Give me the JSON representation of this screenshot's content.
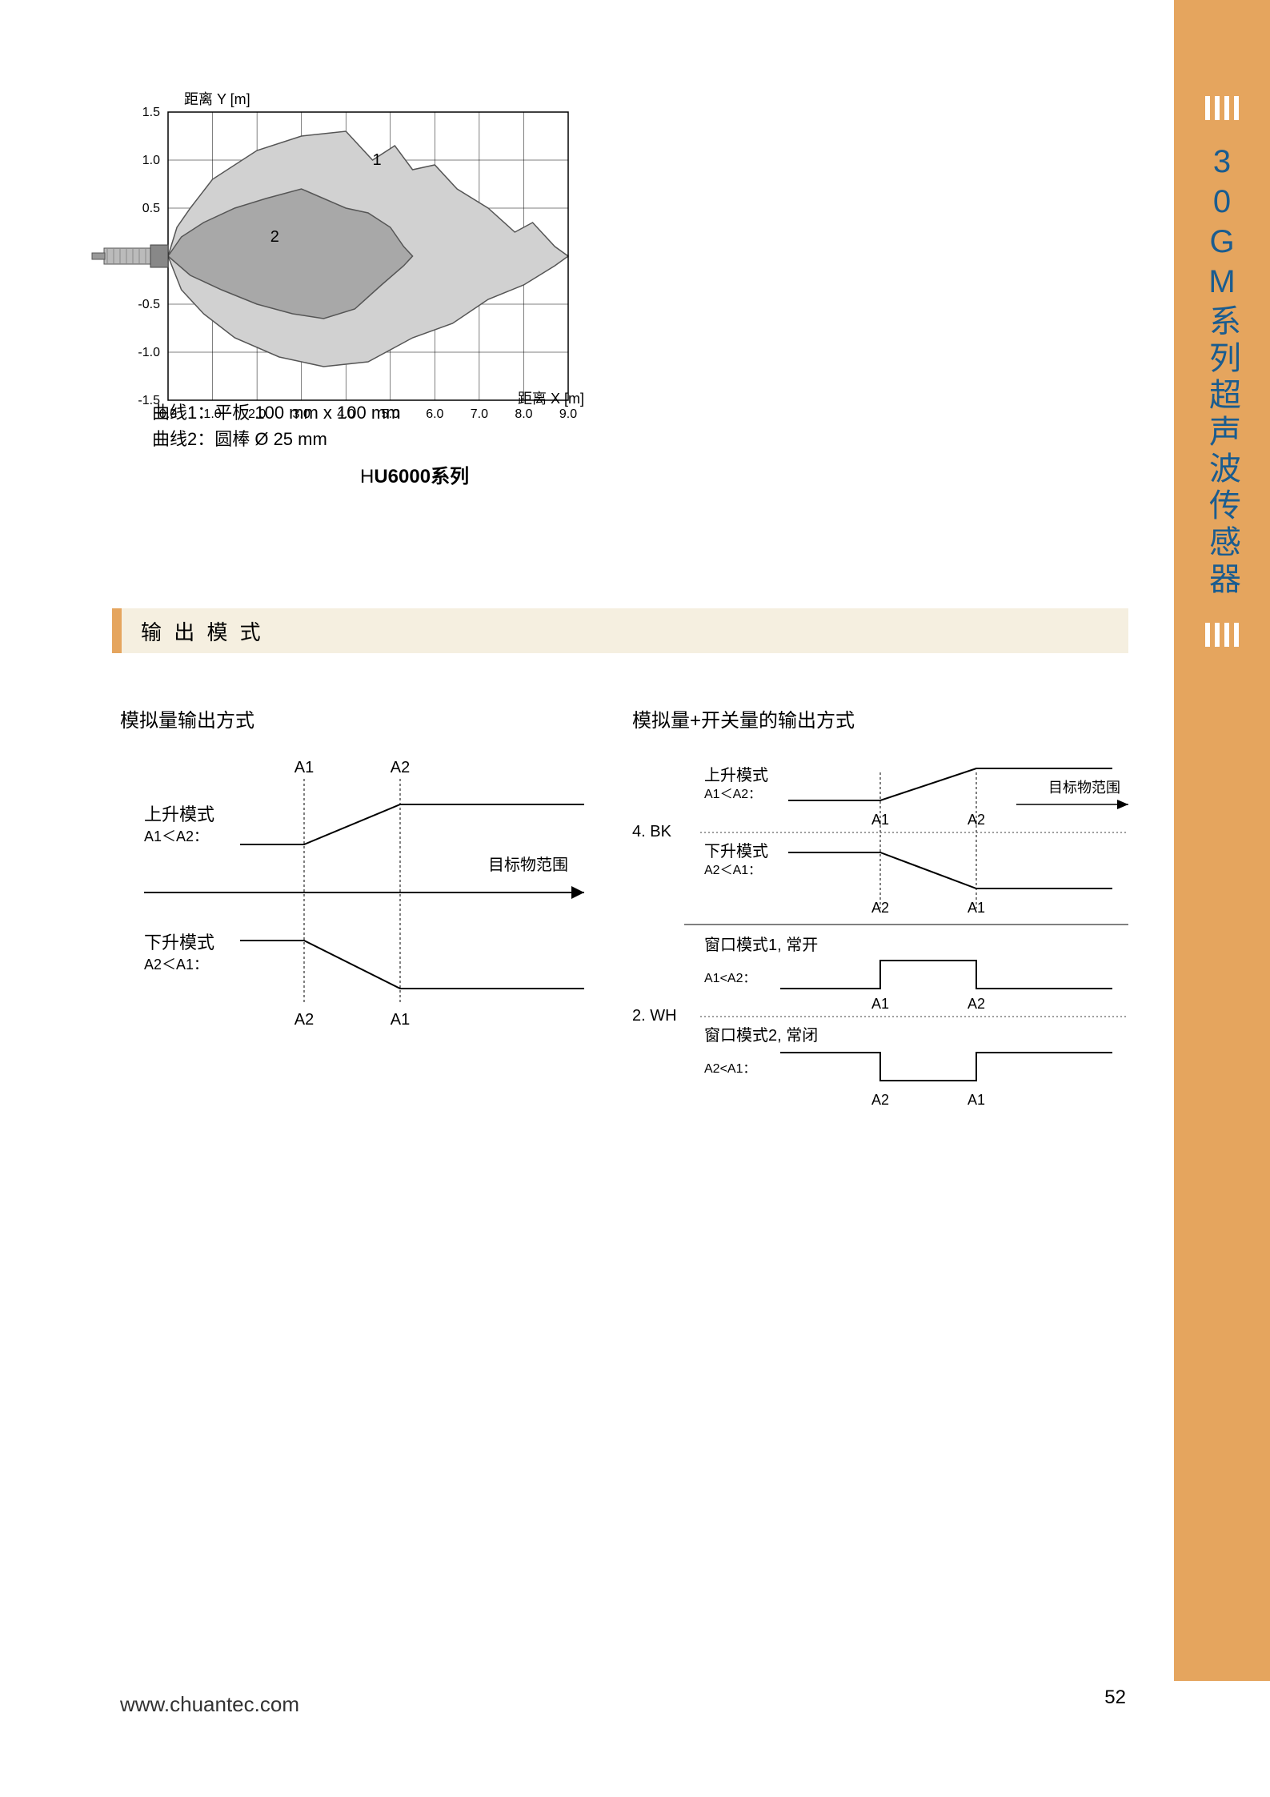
{
  "side": {
    "title": "30GM系列超声波传感器"
  },
  "chart": {
    "type": "area",
    "ylabel": "距离 Y [m]",
    "xlabel": "距离 X [m]",
    "yticks": [
      "1.5",
      "1.0",
      "0.5",
      "",
      "-0.5",
      "-1.0",
      "-1.5"
    ],
    "xticks": [
      "0.0",
      "1.0",
      "2.0",
      "3.0",
      "4.0",
      "5.0",
      "6.0",
      "7.0",
      "8.0",
      "9.0"
    ],
    "xlim": [
      0,
      9
    ],
    "ylim": [
      -1.5,
      1.5
    ],
    "region_labels": [
      "1",
      "2"
    ],
    "legend_lines": [
      "曲线1：平板 100 mm x 100 mm",
      "曲线2：圆棒 Ø 25 mm"
    ],
    "series_title_prefix": "H",
    "series_title_bold": "U6000系列",
    "outer_fill": "#d1d1d1",
    "inner_fill": "#a8a8a8",
    "grid_color": "#000000",
    "background": "#ffffff",
    "outer_path": [
      [
        0.0,
        0.0
      ],
      [
        0.2,
        0.3
      ],
      [
        0.5,
        0.5
      ],
      [
        1.0,
        0.8
      ],
      [
        2.0,
        1.1
      ],
      [
        3.0,
        1.25
      ],
      [
        4.0,
        1.3
      ],
      [
        4.6,
        1.0
      ],
      [
        5.1,
        1.15
      ],
      [
        5.5,
        0.9
      ],
      [
        6.0,
        0.95
      ],
      [
        6.5,
        0.7
      ],
      [
        7.2,
        0.5
      ],
      [
        7.8,
        0.25
      ],
      [
        8.2,
        0.35
      ],
      [
        8.7,
        0.1
      ],
      [
        9.0,
        0.0
      ],
      [
        8.7,
        -0.1
      ],
      [
        8.0,
        -0.3
      ],
      [
        7.2,
        -0.45
      ],
      [
        6.4,
        -0.7
      ],
      [
        5.5,
        -0.85
      ],
      [
        4.5,
        -1.1
      ],
      [
        3.5,
        -1.15
      ],
      [
        2.5,
        -1.05
      ],
      [
        1.5,
        -0.85
      ],
      [
        0.8,
        -0.6
      ],
      [
        0.3,
        -0.35
      ],
      [
        0.0,
        0.0
      ]
    ],
    "inner_path": [
      [
        0.0,
        0.0
      ],
      [
        0.3,
        0.2
      ],
      [
        0.8,
        0.35
      ],
      [
        1.5,
        0.5
      ],
      [
        2.2,
        0.6
      ],
      [
        3.0,
        0.7
      ],
      [
        3.5,
        0.6
      ],
      [
        4.0,
        0.5
      ],
      [
        4.5,
        0.45
      ],
      [
        5.0,
        0.3
      ],
      [
        5.3,
        0.1
      ],
      [
        5.5,
        0.0
      ],
      [
        5.3,
        -0.1
      ],
      [
        4.8,
        -0.3
      ],
      [
        4.2,
        -0.55
      ],
      [
        3.5,
        -0.65
      ],
      [
        2.8,
        -0.6
      ],
      [
        2.0,
        -0.5
      ],
      [
        1.2,
        -0.35
      ],
      [
        0.5,
        -0.2
      ],
      [
        0.0,
        0.0
      ]
    ]
  },
  "section": {
    "title": "输 出 模 式"
  },
  "diagrams": {
    "left": {
      "title": "模拟量输出方式",
      "rise_label": "上升模式",
      "rise_cond": "A1＜A2：",
      "fall_label": "下升模式",
      "fall_cond": "A2＜A1：",
      "target_label": "目标物范围",
      "top_marks": [
        "A1",
        "A2"
      ],
      "bottom_marks": [
        "A2",
        "A1"
      ]
    },
    "right": {
      "title": "模拟量+开关量的输出方式",
      "group1_label": "4. BK",
      "rise_label": "上升模式",
      "rise_cond": "A1＜A2：",
      "rise_marks": [
        "A1",
        "A2"
      ],
      "fall_label": "下升模式",
      "fall_cond": "A2＜A1：",
      "fall_marks": [
        "A2",
        "A1"
      ],
      "target_label": "目标物范围",
      "group2_label": "2. WH",
      "win1_label": "窗口模式1, 常开",
      "win1_cond": "A1<A2：",
      "win1_marks": [
        "A1",
        "A2"
      ],
      "win2_label": "窗口模式2, 常闭",
      "win2_cond": "A2<A1：",
      "win2_marks": [
        "A2",
        "A1"
      ]
    }
  },
  "footer": {
    "url": "www.chuantec.com",
    "page": "52"
  },
  "colors": {
    "sidebar_bg": "#e5a55e",
    "sidebar_text": "#1a5c8f",
    "section_bg": "#f5efe0",
    "line_color": "#000000"
  }
}
